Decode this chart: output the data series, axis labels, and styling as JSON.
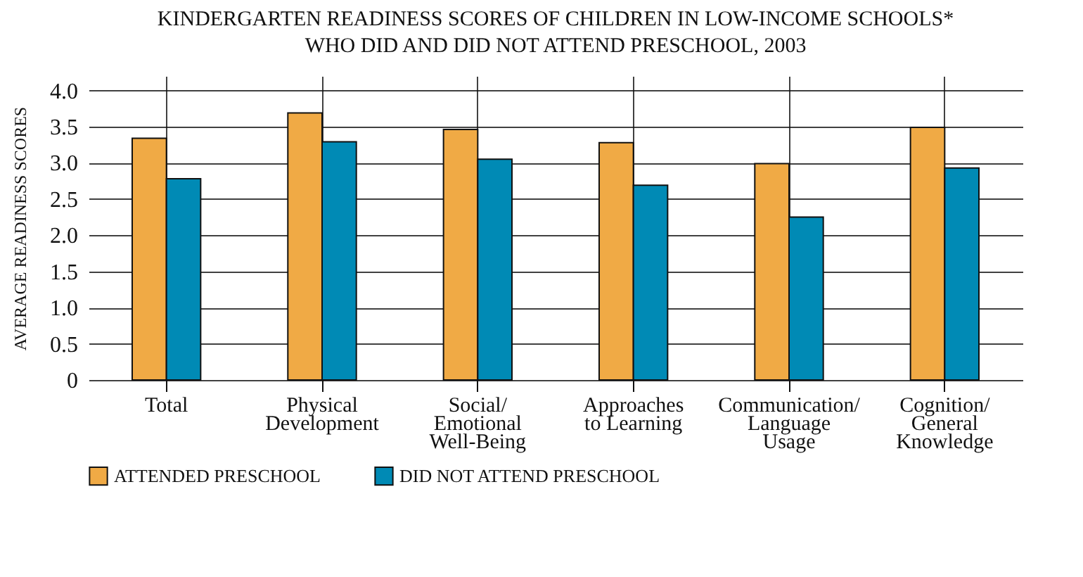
{
  "chart_data": {
    "type": "bar",
    "title": "KINDERGARTEN READINESS SCORES OF CHILDREN IN LOW-INCOME SCHOOLS* WHO DID AND DID NOT ATTEND PRESCHOOL, 2003",
    "ylabel": "AVERAGE READINESS SCORES",
    "categories": [
      "Total",
      "Physical\nDevelopment",
      "Social/\nEmotional\nWell-Being",
      "Approaches\nto Learning",
      "Communication/\nLanguage\nUsage",
      "Cognition/\nGeneral\nKnowledge"
    ],
    "series": [
      {
        "name": "ATTENDED PRESCHOOL",
        "color": "#f0aa45",
        "values": [
          3.34,
          3.69,
          3.46,
          3.28,
          2.99,
          3.49
        ]
      },
      {
        "name": "DID NOT ATTEND PRESCHOOL",
        "color": "#008ab5",
        "values": [
          2.78,
          3.29,
          3.05,
          2.69,
          2.25,
          2.93
        ]
      }
    ],
    "ylim": [
      0,
      4.2
    ],
    "yticks": [
      0,
      {
        "value": 0.5,
        "label": "0.5"
      },
      {
        "value": 1,
        "label": "1.0"
      },
      {
        "value": 1.5,
        "label": "1.5"
      },
      {
        "value": 2,
        "label": "2.0"
      },
      {
        "value": 2.5,
        "label": "2.5"
      },
      {
        "value": 3,
        "label": "3.0"
      },
      {
        "value": 3.5,
        "label": "3.5"
      },
      {
        "value": 4,
        "label": "4.0"
      }
    ],
    "grid": true,
    "legend": "bottom"
  }
}
